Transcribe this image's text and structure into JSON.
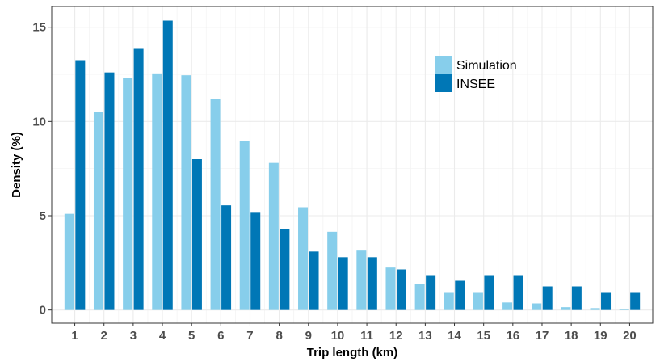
{
  "chart_data": {
    "type": "bar",
    "categories": [
      "1",
      "2",
      "3",
      "4",
      "5",
      "6",
      "7",
      "8",
      "9",
      "10",
      "11",
      "12",
      "13",
      "14",
      "15",
      "16",
      "17",
      "18",
      "19",
      "20"
    ],
    "series": [
      {
        "name": "Simulation",
        "color": "#87ceeb",
        "values": [
          5.1,
          10.5,
          12.3,
          12.55,
          12.45,
          11.2,
          8.95,
          7.8,
          5.45,
          4.15,
          3.15,
          2.25,
          1.4,
          0.95,
          0.95,
          0.4,
          0.35,
          0.15,
          0.1,
          0.05
        ]
      },
      {
        "name": "INSEE",
        "color": "#0077b6",
        "values": [
          13.25,
          12.6,
          13.85,
          15.35,
          8.0,
          5.55,
          5.2,
          4.3,
          3.1,
          2.8,
          2.8,
          2.15,
          1.85,
          1.55,
          1.85,
          1.85,
          1.25,
          1.25,
          0.95,
          0.95
        ]
      }
    ],
    "xlabel": "Trip length (km)",
    "ylabel": "Density (%)",
    "ylim": [
      -0.7,
      16.1
    ],
    "yticks": [
      0,
      5,
      10,
      15
    ],
    "grid": true,
    "legend_position": "top-right"
  }
}
